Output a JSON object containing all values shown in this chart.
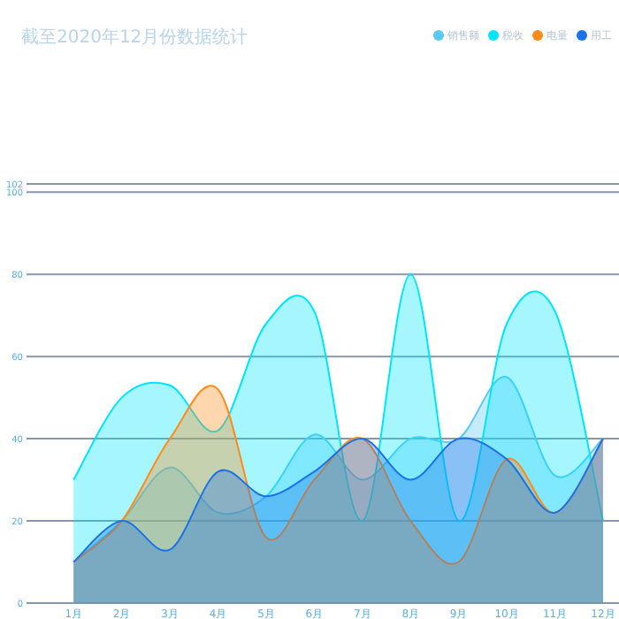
{
  "chart_data": {
    "type": "area",
    "title": "截至2020年12月份数据统计",
    "categories": [
      "1月",
      "2月",
      "3月",
      "4月",
      "5月",
      "6月",
      "7月",
      "8月",
      "9月",
      "10月",
      "11月",
      "12月"
    ],
    "series": [
      {
        "name": "销售额",
        "color": "#5ac8fa",
        "values": [
          10,
          20,
          33,
          22,
          26,
          41,
          30,
          40,
          40,
          55,
          31,
          40
        ]
      },
      {
        "name": "税收",
        "color": "#00e5ff",
        "values": [
          30,
          50,
          53,
          42,
          68,
          71,
          20,
          80,
          20,
          68,
          71,
          20
        ]
      },
      {
        "name": "电量",
        "color": "#ff8c1a",
        "values": [
          10,
          20,
          40,
          52,
          16,
          30,
          40,
          20,
          10,
          35,
          22,
          40
        ]
      },
      {
        "name": "用工",
        "color": "#1a73e8",
        "values": [
          10,
          20,
          13,
          32,
          26,
          32,
          40,
          30,
          40,
          35,
          22,
          40
        ]
      }
    ],
    "ylim": [
      0,
      102
    ],
    "yticks": [
      0,
      20,
      40,
      60,
      80,
      100,
      102
    ],
    "grid": "y",
    "legend": "top right"
  }
}
